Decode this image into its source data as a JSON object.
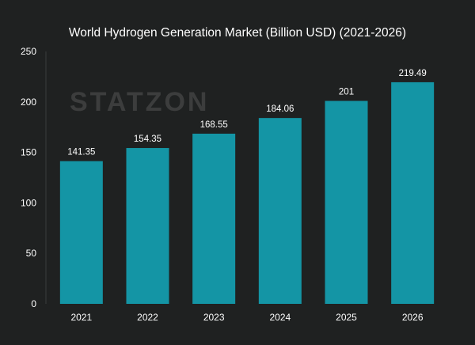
{
  "chart_data": {
    "type": "bar",
    "title": "World Hydrogen Generation Market (Billion USD) (2021-2026)",
    "categories": [
      "2021",
      "2022",
      "2023",
      "2024",
      "2025",
      "2026"
    ],
    "values": [
      141.35,
      154.35,
      168.55,
      184.06,
      201,
      219.49
    ],
    "value_labels": [
      "141.35",
      "154.35",
      "168.55",
      "184.06",
      "201",
      "219.49"
    ],
    "xlabel": "",
    "ylabel": "",
    "ylim": [
      0,
      250
    ],
    "yticks": [
      0,
      50,
      100,
      150,
      200,
      250
    ],
    "grid": false,
    "legend": "none"
  },
  "watermark": "STATZON",
  "colors": {
    "background": "#1f2121",
    "bar": "#1495a5",
    "text": "#ffffff"
  }
}
